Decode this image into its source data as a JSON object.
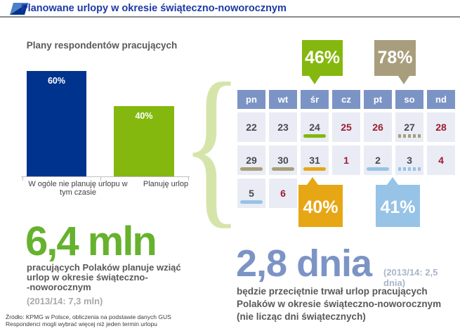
{
  "header": {
    "title": "Planowane urlopy w okresie świąteczno-noworocznym"
  },
  "chart_data": {
    "type": "bar",
    "title": "Plany respondentów pracujących",
    "categories": [
      "W ogóle nie planuję urlopu w tym czasie",
      "Planuję urlop"
    ],
    "values": [
      60,
      40
    ],
    "value_labels": [
      "60%",
      "40%"
    ],
    "bar_colors": [
      "#00338D",
      "#84B80E"
    ],
    "ylim": [
      0,
      62
    ],
    "grid": false,
    "legend": false
  },
  "highlights": {
    "wed_24": {
      "label": "46%",
      "color": "#84B80E",
      "points_to": "śr 24 grudnia"
    },
    "sat_27": {
      "label": "78%",
      "color": "#A89E7D",
      "points_to": "so 27 grudnia"
    },
    "wed_31": {
      "label": "40%",
      "color": "#E7A614",
      "points_to": "śr 31 grudnia"
    },
    "fri_2": {
      "label": "41%",
      "color": "#96C3E6",
      "points_to": "pt 2 stycznia"
    }
  },
  "calendar": {
    "days_of_week": [
      "pn",
      "wt",
      "śr",
      "cz",
      "pt",
      "so",
      "nd"
    ],
    "weeks": [
      [
        {
          "d": "22"
        },
        {
          "d": "23"
        },
        {
          "d": "24",
          "mark": {
            "style": "solid",
            "color": "#84B80E"
          }
        },
        {
          "d": "25",
          "holiday": true
        },
        {
          "d": "26",
          "holiday": true
        },
        {
          "d": "27",
          "mark": {
            "style": "dotted",
            "color": "#A89E7D"
          }
        },
        {
          "d": "28",
          "holiday": true
        }
      ],
      [
        {
          "d": "29",
          "mark": {
            "style": "solid",
            "color": "#A89E7D"
          }
        },
        {
          "d": "30",
          "mark": {
            "style": "solid",
            "color": "#A89E7D"
          }
        },
        {
          "d": "31",
          "mark": {
            "style": "solid",
            "color": "#E7A614"
          }
        },
        {
          "d": "1",
          "holiday": true
        },
        {
          "d": "2",
          "mark": {
            "style": "solid",
            "color": "#96C3E6"
          }
        },
        {
          "d": "3",
          "mark": {
            "style": "dotted",
            "color": "#96C3E6"
          }
        },
        {
          "d": "4",
          "holiday": true
        }
      ],
      [
        {
          "d": "5",
          "mark": {
            "style": "solid",
            "color": "#96C3E6"
          }
        },
        {
          "d": "6",
          "holiday": true
        }
      ]
    ]
  },
  "stat_green": {
    "value": "6,4 mln",
    "description_lines": [
      "pracujących Polaków planuje wziąć",
      "urlop w okresie świąteczno-",
      "-noworocznym"
    ],
    "prior_year": "(2013/14: 7,3 mln)"
  },
  "stat_blue": {
    "value": "2,8 dnia",
    "prior_year": "(2013/14: 2,5 dnia)",
    "description_lines": [
      "będzie przeciętnie trwał urlop pracujących",
      "Polaków w okresie świąteczno-noworocznym",
      "(nie licząc dni świątecznych)"
    ]
  },
  "footnotes": [
    "Źródło: KPMG w Polsce, obliczenia na podstawie danych GUS",
    "Respondenci mogli wybrać  więcej niż jeden termin urlopu"
  ],
  "colors": {
    "title_blue": "#1D3AA5",
    "bar_blue": "#00338D",
    "green": "#84B80E",
    "khaki": "#A89E7D",
    "yellow": "#E7A614",
    "light_blue": "#96C3E6",
    "calendar_header_blue": "#7C94C5",
    "calendar_cell_bg": "#E9ECF4",
    "holiday_red": "#9E1B32",
    "big_green_text": "#66B22E",
    "big_blue_text": "#7C94C5",
    "body_text_gray": "#595959",
    "brace_green": "#D5E5AA"
  }
}
